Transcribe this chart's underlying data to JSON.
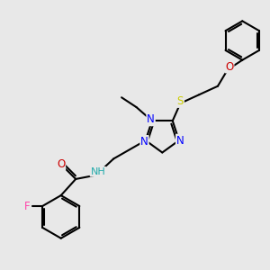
{
  "background_color": "#e8e8e8",
  "atom_colors": {
    "C": "#000000",
    "N": "#0000ff",
    "O": "#cc0000",
    "S": "#cccc00",
    "F": "#ff44aa",
    "H": "#22aaaa"
  },
  "bond_color": "#000000",
  "bond_width": 1.5,
  "font_size": 8.5
}
